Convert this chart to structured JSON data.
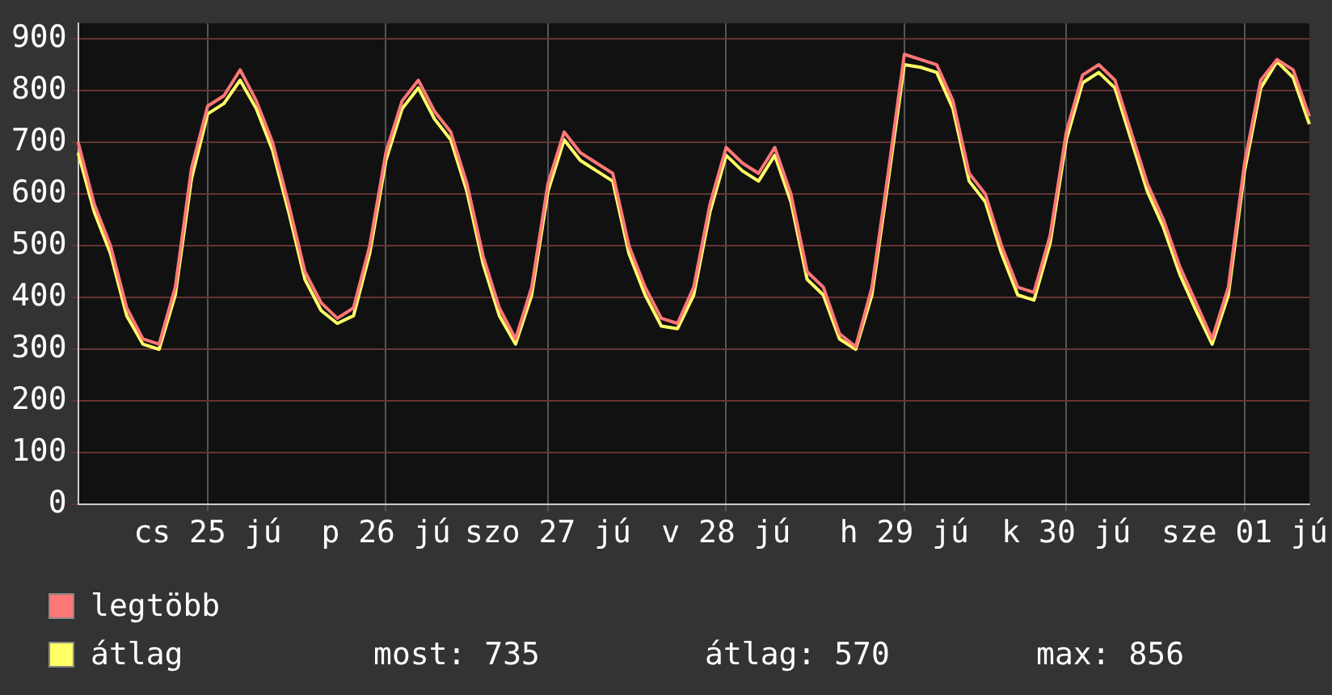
{
  "chart_data": {
    "type": "line",
    "categories": [
      null,
      null,
      null,
      null,
      null,
      null,
      null,
      null,
      "cs 25 jú",
      null,
      null,
      null,
      null,
      null,
      null,
      null,
      null,
      null,
      null,
      "p 26 jú",
      null,
      null,
      null,
      null,
      null,
      null,
      null,
      null,
      null,
      "szo 27 jú",
      null,
      null,
      null,
      null,
      null,
      null,
      null,
      null,
      null,
      null,
      "v 28 jú",
      null,
      null,
      null,
      null,
      null,
      null,
      null,
      null,
      null,
      null,
      "h 29 jú",
      null,
      null,
      null,
      null,
      null,
      null,
      null,
      null,
      null,
      "k 30 jú",
      null,
      null,
      null,
      null,
      null,
      null,
      null,
      null,
      null,
      null,
      "sze 01 jú",
      null,
      null,
      null,
      null
    ],
    "series": [
      {
        "name": "legtöbb",
        "color": "#ff7777",
        "values": [
          700,
          580,
          500,
          380,
          320,
          310,
          420,
          650,
          770,
          790,
          840,
          780,
          700,
          580,
          450,
          390,
          360,
          380,
          500,
          680,
          780,
          820,
          760,
          720,
          620,
          480,
          380,
          320,
          420,
          620,
          720,
          680,
          660,
          640,
          500,
          420,
          360,
          350,
          420,
          580,
          690,
          660,
          640,
          690,
          600,
          450,
          420,
          330,
          305,
          420,
          640,
          870,
          860,
          850,
          780,
          640,
          600,
          500,
          420,
          410,
          520,
          720,
          830,
          850,
          820,
          720,
          620,
          550,
          460,
          390,
          320,
          420,
          660,
          820,
          860,
          840,
          750
        ]
      },
      {
        "name": "átlag",
        "color": "#ffff66",
        "values": [
          680,
          565,
          485,
          365,
          310,
          300,
          405,
          630,
          755,
          775,
          820,
          765,
          685,
          565,
          435,
          375,
          350,
          365,
          485,
          665,
          765,
          805,
          745,
          705,
          605,
          465,
          365,
          310,
          405,
          605,
          705,
          665,
          645,
          625,
          485,
          405,
          345,
          340,
          405,
          565,
          675,
          645,
          625,
          675,
          585,
          435,
          405,
          320,
          300,
          405,
          625,
          850,
          845,
          835,
          765,
          625,
          585,
          485,
          405,
          395,
          505,
          705,
          815,
          835,
          805,
          705,
          605,
          535,
          445,
          375,
          310,
          405,
          645,
          805,
          856,
          825,
          735
        ]
      }
    ],
    "ylim": [
      0,
      930
    ],
    "yticks": [
      0,
      100,
      200,
      300,
      400,
      500,
      600,
      700,
      800,
      900
    ],
    "grid": true,
    "legend": "bottom",
    "annotations": [
      "most: 735",
      "átlag: 570",
      "max: 856"
    ]
  }
}
